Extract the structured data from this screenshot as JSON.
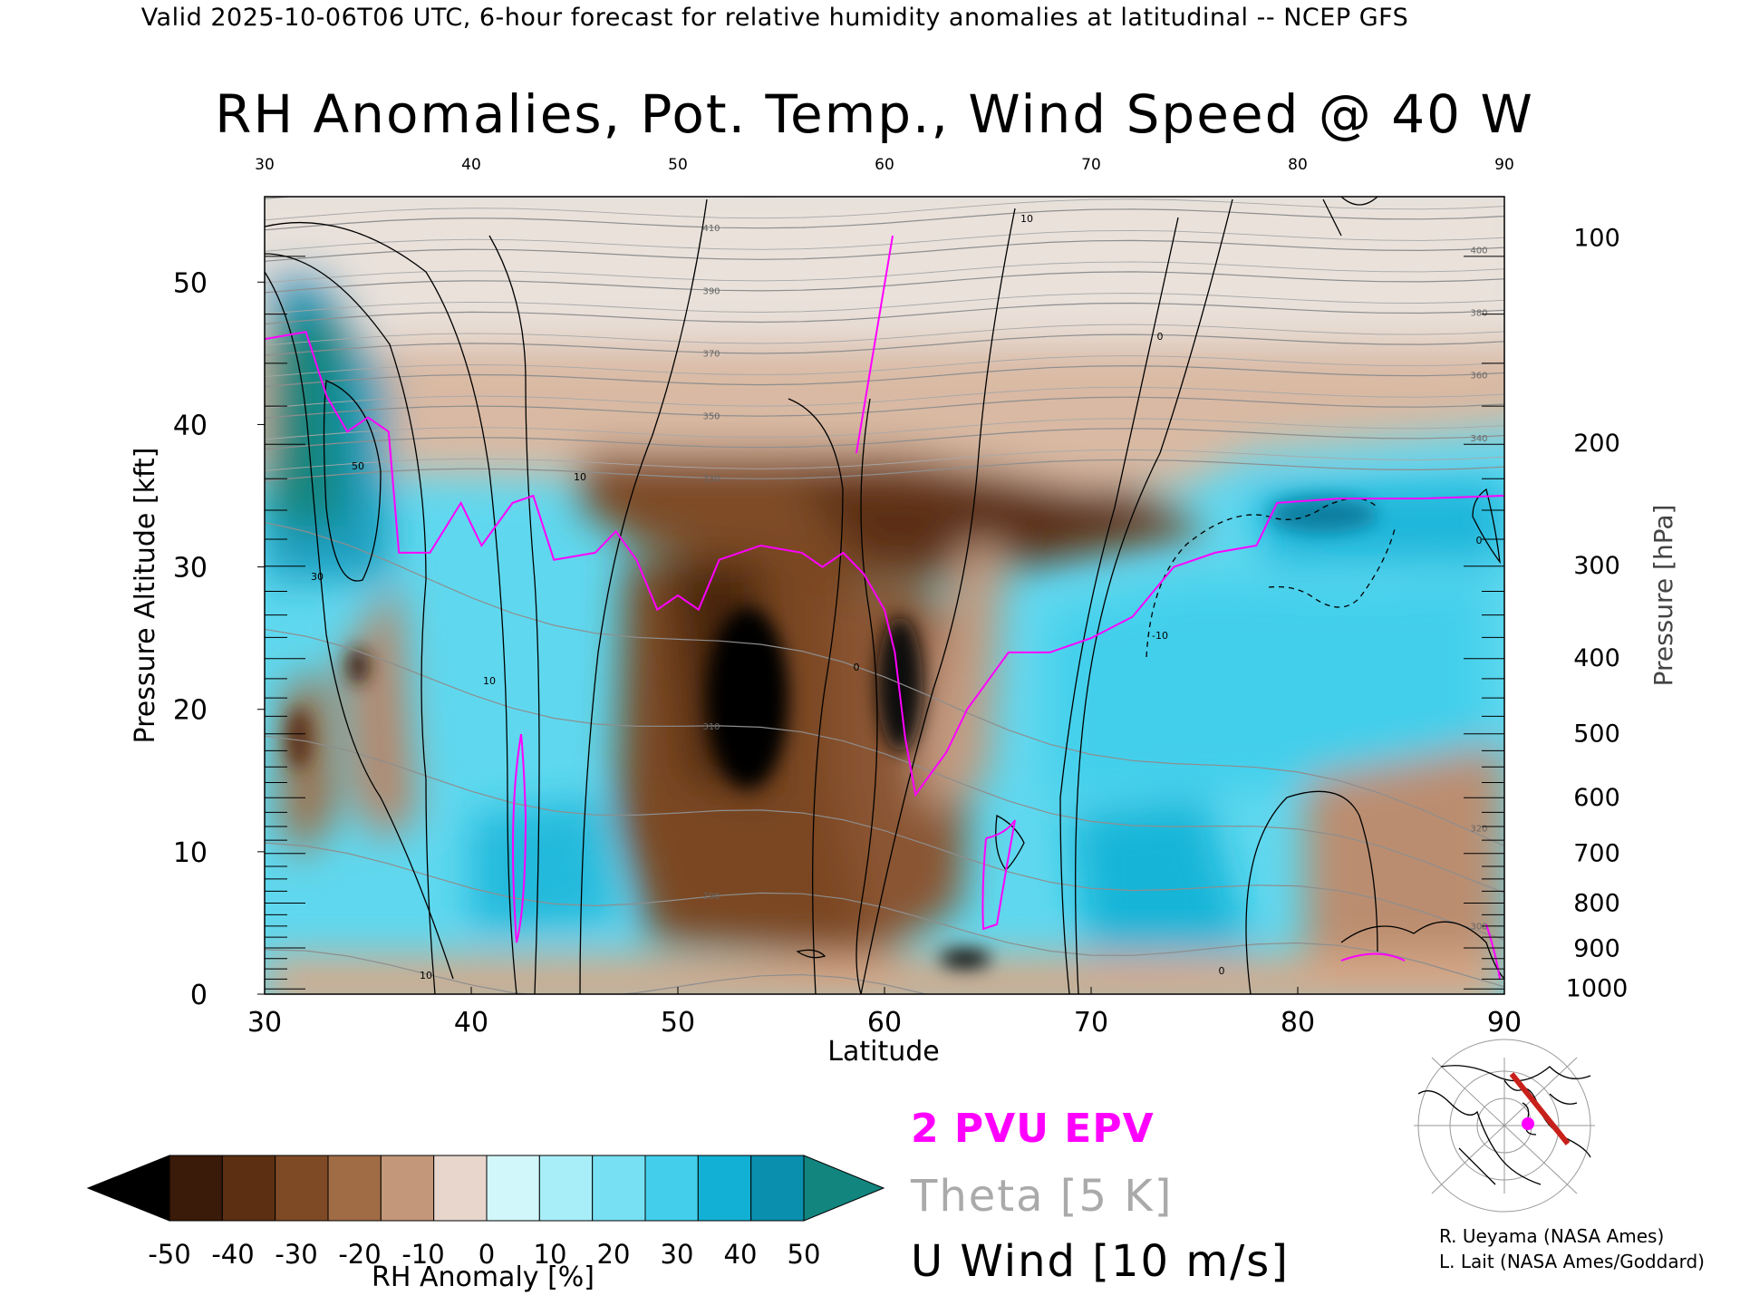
{
  "header": {
    "valid_line": "Valid 2025-10-06T06 UTC, 6-hour forecast for relative humidity anomalies at latitudinal -- NCEP GFS",
    "title": "RH Anomalies, Pot. Temp., Wind Speed @ 40 W"
  },
  "chart_data": {
    "type": "heatmap",
    "title": "RH Anomalies, Pot. Temp., Wind Speed @ 40 W",
    "xlabel": "Latitude",
    "ylabel_left": "Pressure Altitude [kft]",
    "ylabel_right": "Pressure [hPa]",
    "xlim": [
      30,
      90
    ],
    "ylim": [
      0,
      56
    ],
    "x_ticks": [
      "30",
      "40",
      "50",
      "60",
      "70",
      "80",
      "90"
    ],
    "y_ticks_left": [
      "0",
      "10",
      "20",
      "30",
      "40",
      "50"
    ],
    "y_ticks_right": [
      {
        "label": "100",
        "kft": 53.1
      },
      {
        "label": "200",
        "kft": 38.7
      },
      {
        "label": "300",
        "kft": 30.1
      },
      {
        "label": "400",
        "kft": 23.6
      },
      {
        "label": "500",
        "kft": 18.3
      },
      {
        "label": "600",
        "kft": 13.8
      },
      {
        "label": "700",
        "kft": 9.9
      },
      {
        "label": "800",
        "kft": 6.4
      },
      {
        "label": "900",
        "kft": 3.2
      },
      {
        "label": "1000",
        "kft": 0.4
      }
    ],
    "colorbar": {
      "label": "RH Anomaly [%]",
      "ticks": [
        "-50",
        "-40",
        "-30",
        "-20",
        "-10",
        "0",
        "10",
        "20",
        "30",
        "40",
        "50"
      ],
      "colors": [
        "#000000",
        "#3a1a08",
        "#5c2f12",
        "#7e4a25",
        "#a06c45",
        "#c3977a",
        "#e8d6cc",
        "#d2f7fb",
        "#a8eef8",
        "#78e0f3",
        "#43cfeb",
        "#12b0d5",
        "#0a8fae",
        "#12857f"
      ],
      "extend": "both"
    },
    "theta_contours_K": [
      "280",
      "290",
      "300",
      "310",
      "320",
      "330",
      "340",
      "350",
      "360",
      "370",
      "380",
      "390",
      "400",
      "410",
      "420"
    ],
    "wind_contour_labels": [
      "0",
      "10",
      "30",
      "50",
      "-10"
    ],
    "epv_line_2pvu": [
      [
        30,
        46
      ],
      [
        32,
        46.5
      ],
      [
        33,
        42
      ],
      [
        34,
        39.5
      ],
      [
        35,
        40.5
      ],
      [
        36,
        39.5
      ],
      [
        36.5,
        31
      ],
      [
        38,
        31
      ],
      [
        39.5,
        34.5
      ],
      [
        40.5,
        31.5
      ],
      [
        42,
        34.5
      ],
      [
        43,
        35
      ],
      [
        44,
        30.5
      ],
      [
        46,
        31
      ],
      [
        47,
        32.5
      ],
      [
        48,
        30.5
      ],
      [
        49,
        27
      ],
      [
        50,
        28
      ],
      [
        51,
        27
      ],
      [
        52,
        30.5
      ],
      [
        54,
        31.5
      ],
      [
        56,
        31
      ],
      [
        57,
        30
      ],
      [
        58,
        31
      ],
      [
        59,
        29.5
      ],
      [
        60,
        27
      ],
      [
        60.5,
        24
      ],
      [
        61,
        18
      ],
      [
        61.5,
        14
      ],
      [
        63,
        17
      ],
      [
        64,
        20
      ],
      [
        65,
        22
      ],
      [
        66,
        24
      ],
      [
        68,
        24
      ],
      [
        70,
        25
      ],
      [
        72,
        26.5
      ],
      [
        74,
        30
      ],
      [
        76,
        31
      ],
      [
        78,
        31.5
      ],
      [
        79,
        34.5
      ],
      [
        82,
        34.8
      ],
      [
        86,
        34.8
      ],
      [
        90,
        35
      ]
    ],
    "legend": [
      "2 PVU EPV",
      "Theta [5 K]",
      "U Wind [10 m/s]"
    ]
  },
  "legend_text": {
    "epv": "2 PVU EPV",
    "theta": "Theta [5 K]",
    "wind": "U Wind [10 m/s]"
  },
  "credits": {
    "line1": "R. Ueyama (NASA Ames)",
    "line2": "L. Lait (NASA Ames/Goddard)"
  },
  "inset_map": {
    "section_color": "#c8201a",
    "marker_color": "#ff00ff"
  }
}
